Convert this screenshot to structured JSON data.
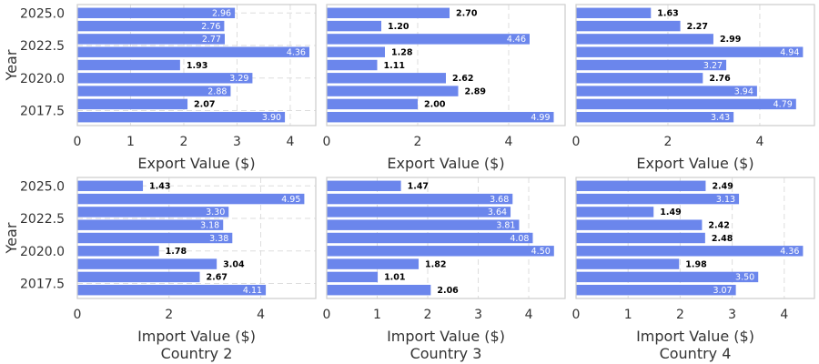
{
  "colors": {
    "bar": "#6b86ec",
    "frame": "#cccccc",
    "grid": "#dddddd",
    "label_inside": "#ffffff",
    "label_outside": "#000000"
  },
  "chart_data": [
    {
      "type": "bar",
      "orientation": "horizontal",
      "title": "",
      "xlabel": "Export Value ($)",
      "ylabel": "Year",
      "x": [
        2017,
        2018,
        2019,
        2020,
        2021,
        2022,
        2023,
        2024,
        2025
      ],
      "values": [
        3.9,
        2.07,
        2.88,
        3.29,
        1.93,
        4.36,
        2.77,
        2.76,
        2.96
      ],
      "xlim": [
        0,
        4.48
      ],
      "xticks": [
        "0",
        "1",
        "2",
        "3",
        "4"
      ],
      "ylim": [
        2016.35,
        2025.65
      ],
      "yticks": [
        "2017.5",
        "2020.0",
        "2022.5",
        "2025.0"
      ],
      "grid": true
    },
    {
      "type": "bar",
      "orientation": "horizontal",
      "title": "",
      "xlabel": "Export Value ($)",
      "ylabel": "",
      "x": [
        2017,
        2018,
        2019,
        2020,
        2021,
        2022,
        2023,
        2024,
        2025
      ],
      "values": [
        4.99,
        2.0,
        2.89,
        2.62,
        1.11,
        1.28,
        4.46,
        1.2,
        2.7
      ],
      "xlim": [
        0,
        5.24
      ],
      "xticks": [
        "0",
        "2",
        "4"
      ],
      "ylim": [
        2016.35,
        2025.65
      ],
      "yticks": [],
      "grid": true
    },
    {
      "type": "bar",
      "orientation": "horizontal",
      "title": "",
      "xlabel": "Export Value ($)",
      "ylabel": "",
      "x": [
        2017,
        2018,
        2019,
        2020,
        2021,
        2022,
        2023,
        2024,
        2025
      ],
      "values": [
        3.43,
        4.79,
        3.94,
        2.76,
        3.27,
        4.94,
        2.99,
        2.27,
        1.63
      ],
      "xlim": [
        0,
        5.19
      ],
      "xticks": [
        "0",
        "2",
        "4"
      ],
      "ylim": [
        2016.35,
        2025.65
      ],
      "yticks": [],
      "grid": true
    },
    {
      "type": "bar",
      "orientation": "horizontal",
      "title": "Country 2",
      "xlabel": "Import Value ($)",
      "ylabel": "Year",
      "x": [
        2017,
        2018,
        2019,
        2020,
        2021,
        2022,
        2023,
        2024,
        2025
      ],
      "values": [
        4.11,
        2.67,
        3.04,
        1.78,
        3.38,
        3.18,
        3.3,
        4.95,
        1.43
      ],
      "xlim": [
        0,
        5.2
      ],
      "xticks": [
        "0",
        "2",
        "4"
      ],
      "ylim": [
        2016.35,
        2025.65
      ],
      "yticks": [
        "2017.5",
        "2020.0",
        "2022.5",
        "2025.0"
      ],
      "grid": true
    },
    {
      "type": "bar",
      "orientation": "horizontal",
      "title": "Country 3",
      "xlabel": "Import Value ($)",
      "ylabel": "",
      "x": [
        2017,
        2018,
        2019,
        2020,
        2021,
        2022,
        2023,
        2024,
        2025
      ],
      "values": [
        2.06,
        1.01,
        1.82,
        4.5,
        4.08,
        3.81,
        3.64,
        3.68,
        1.47
      ],
      "xlim": [
        0,
        4.72
      ],
      "xticks": [
        "0",
        "1",
        "2",
        "3",
        "4"
      ],
      "ylim": [
        2016.35,
        2025.65
      ],
      "yticks": [],
      "grid": true
    },
    {
      "type": "bar",
      "orientation": "horizontal",
      "title": "Country 4",
      "xlabel": "Import Value ($)",
      "ylabel": "",
      "x": [
        2017,
        2018,
        2019,
        2020,
        2021,
        2022,
        2023,
        2024,
        2025
      ],
      "values": [
        3.07,
        3.5,
        1.98,
        4.36,
        2.48,
        2.42,
        1.49,
        3.13,
        2.49
      ],
      "xlim": [
        0,
        4.58
      ],
      "xticks": [
        "0",
        "1",
        "2",
        "3",
        "4"
      ],
      "ylim": [
        2016.35,
        2025.65
      ],
      "yticks": [],
      "grid": true
    }
  ]
}
